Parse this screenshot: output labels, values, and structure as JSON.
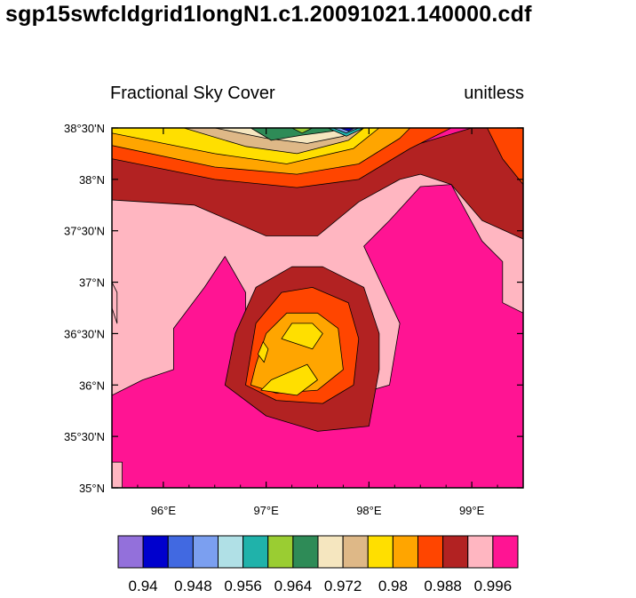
{
  "file_title": "sgp15swfcldgrid1longN1.c1.20091021.140000.cdf",
  "chart_data": {
    "type": "contour",
    "title": "Fractional Sky Cover",
    "units": "unitless",
    "xlim": [
      95.5,
      99.5
    ],
    "ylim": [
      35.0,
      38.5
    ],
    "x_ticks": [
      {
        "value": 96,
        "label": "96°E"
      },
      {
        "value": 97,
        "label": "97°E"
      },
      {
        "value": 98,
        "label": "98°E"
      },
      {
        "value": 99,
        "label": "99°E"
      }
    ],
    "y_ticks": [
      {
        "value": 35.0,
        "label": "35°N"
      },
      {
        "value": 35.5,
        "label": "35°30'N"
      },
      {
        "value": 36.0,
        "label": "36°N"
      },
      {
        "value": 36.5,
        "label": "36°30'N"
      },
      {
        "value": 37.0,
        "label": "37°N"
      },
      {
        "value": 37.5,
        "label": "37°30'N"
      },
      {
        "value": 38.0,
        "label": "38°N"
      },
      {
        "value": 38.5,
        "label": "38°30'N"
      }
    ],
    "colorbar_colors": [
      "#9370db",
      "#0000cd",
      "#4169e1",
      "#7b9ff0",
      "#b0e0e6",
      "#20b2aa",
      "#9acd32",
      "#2e8b57",
      "#f5e6bf",
      "#deb887",
      "#ffdf00",
      "#ffa500",
      "#ff4500",
      "#b22222",
      "#ffb6c1",
      "#ff1493"
    ],
    "colorbar_labels": [
      "0.94",
      "0.948",
      "0.956",
      "0.964",
      "0.972",
      "0.98",
      "0.988",
      "0.996"
    ],
    "colorbar_label_after_bins": [
      2,
      4,
      6,
      8,
      10,
      12,
      14,
      16
    ],
    "regions": [
      {
        "color_index": 13,
        "points": [
          [
            95.5,
            38.35
          ],
          [
            96.6,
            38.2
          ],
          [
            97.3,
            38.12
          ],
          [
            98.0,
            38.2
          ],
          [
            98.6,
            38.38
          ],
          [
            99.0,
            38.5
          ],
          [
            99.5,
            38.5
          ],
          [
            99.5,
            35.0
          ],
          [
            95.5,
            35.0
          ]
        ]
      },
      {
        "color_index": 14,
        "points": [
          [
            95.5,
            37.8
          ],
          [
            96.3,
            37.75
          ],
          [
            97.0,
            37.45
          ],
          [
            97.5,
            37.45
          ],
          [
            97.9,
            37.78
          ],
          [
            98.3,
            38.0
          ],
          [
            98.5,
            38.05
          ],
          [
            98.8,
            37.95
          ],
          [
            99.1,
            37.6
          ],
          [
            99.5,
            37.42
          ],
          [
            99.5,
            35.0
          ],
          [
            95.5,
            35.0
          ]
        ]
      },
      {
        "color_index": 15,
        "points": [
          [
            95.5,
            35.9
          ],
          [
            95.8,
            36.05
          ],
          [
            96.1,
            36.15
          ],
          [
            96.1,
            36.55
          ],
          [
            96.4,
            36.95
          ],
          [
            96.6,
            37.25
          ],
          [
            96.8,
            36.9
          ],
          [
            96.8,
            36.5
          ],
          [
            96.7,
            36.25
          ],
          [
            97.0,
            35.9
          ],
          [
            97.5,
            35.8
          ],
          [
            98.2,
            36.0
          ],
          [
            98.3,
            36.6
          ],
          [
            97.95,
            37.35
          ],
          [
            98.2,
            37.6
          ],
          [
            98.5,
            37.93
          ],
          [
            98.8,
            37.95
          ],
          [
            99.1,
            37.4
          ],
          [
            99.3,
            37.2
          ],
          [
            99.3,
            36.8
          ],
          [
            99.5,
            36.7
          ],
          [
            99.5,
            35.0
          ],
          [
            95.5,
            35.0
          ]
        ]
      },
      {
        "color_index": 13,
        "points": [
          [
            96.6,
            36.0
          ],
          [
            97.0,
            35.7
          ],
          [
            97.5,
            35.55
          ],
          [
            98.0,
            35.6
          ],
          [
            98.1,
            36.15
          ],
          [
            98.1,
            36.5
          ],
          [
            97.95,
            36.95
          ],
          [
            97.55,
            37.15
          ],
          [
            97.25,
            37.15
          ],
          [
            96.9,
            36.95
          ],
          [
            96.7,
            36.5
          ]
        ]
      },
      {
        "color_index": 12,
        "points": [
          [
            96.8,
            36.0
          ],
          [
            97.1,
            35.85
          ],
          [
            97.55,
            35.82
          ],
          [
            97.85,
            36.0
          ],
          [
            97.9,
            36.45
          ],
          [
            97.8,
            36.8
          ],
          [
            97.45,
            36.95
          ],
          [
            97.15,
            36.9
          ],
          [
            96.9,
            36.6
          ]
        ]
      },
      {
        "color_index": 11,
        "points": [
          [
            96.85,
            36.0
          ],
          [
            97.1,
            35.92
          ],
          [
            97.5,
            35.95
          ],
          [
            97.75,
            36.15
          ],
          [
            97.7,
            36.55
          ],
          [
            97.5,
            36.7
          ],
          [
            97.2,
            36.7
          ],
          [
            97.0,
            36.5
          ],
          [
            96.9,
            36.2
          ]
        ]
      },
      {
        "color_index": 10,
        "points": [
          [
            96.95,
            35.95
          ],
          [
            97.3,
            35.9
          ],
          [
            97.5,
            36.05
          ],
          [
            97.4,
            36.2
          ],
          [
            97.05,
            36.05
          ]
        ]
      },
      {
        "color_index": 10,
        "points": [
          [
            97.15,
            36.45
          ],
          [
            97.45,
            36.35
          ],
          [
            97.55,
            36.5
          ],
          [
            97.45,
            36.6
          ],
          [
            97.25,
            36.6
          ]
        ]
      },
      {
        "color_index": 10,
        "points": [
          [
            96.92,
            36.3
          ],
          [
            96.98,
            36.22
          ],
          [
            97.02,
            36.35
          ],
          [
            96.97,
            36.42
          ]
        ]
      },
      {
        "color_index": 12,
        "points": [
          [
            95.5,
            38.2
          ],
          [
            96.5,
            38.0
          ],
          [
            97.3,
            37.92
          ],
          [
            97.9,
            38.0
          ],
          [
            98.4,
            38.3
          ],
          [
            98.8,
            38.5
          ],
          [
            95.5,
            38.5
          ]
        ]
      },
      {
        "color_index": 11,
        "points": [
          [
            95.5,
            38.33
          ],
          [
            96.5,
            38.12
          ],
          [
            97.3,
            38.05
          ],
          [
            97.9,
            38.15
          ],
          [
            98.3,
            38.4
          ],
          [
            98.4,
            38.5
          ],
          [
            95.5,
            38.5
          ]
        ]
      },
      {
        "color_index": 10,
        "points": [
          [
            95.5,
            38.45
          ],
          [
            96.5,
            38.25
          ],
          [
            97.2,
            38.15
          ],
          [
            97.85,
            38.3
          ],
          [
            98.1,
            38.5
          ],
          [
            95.5,
            38.5
          ]
        ]
      },
      {
        "color_index": 9,
        "points": [
          [
            96.2,
            38.5
          ],
          [
            96.8,
            38.32
          ],
          [
            97.3,
            38.25
          ],
          [
            97.8,
            38.38
          ],
          [
            97.95,
            38.5
          ]
        ]
      },
      {
        "color_index": 8,
        "points": [
          [
            96.5,
            38.5
          ],
          [
            97.0,
            38.4
          ],
          [
            97.4,
            38.35
          ],
          [
            97.75,
            38.42
          ],
          [
            97.85,
            38.5
          ]
        ]
      },
      {
        "color_index": 7,
        "points": [
          [
            96.85,
            38.5
          ],
          [
            97.05,
            38.38
          ],
          [
            97.35,
            38.43
          ],
          [
            97.65,
            38.47
          ],
          [
            97.7,
            38.5
          ]
        ]
      },
      {
        "color_index": 6,
        "points": [
          [
            97.25,
            38.5
          ],
          [
            97.35,
            38.45
          ],
          [
            97.45,
            38.5
          ]
        ]
      },
      {
        "color_index": 5,
        "points": [
          [
            97.6,
            38.5
          ],
          [
            97.78,
            38.42
          ],
          [
            97.95,
            38.5
          ]
        ]
      },
      {
        "color_index": 3,
        "points": [
          [
            97.65,
            38.5
          ],
          [
            97.78,
            38.45
          ],
          [
            97.9,
            38.5
          ]
        ]
      },
      {
        "color_index": 1,
        "points": [
          [
            97.72,
            38.5
          ],
          [
            97.8,
            38.47
          ],
          [
            97.86,
            38.5
          ]
        ]
      },
      {
        "color_index": 12,
        "points": [
          [
            99.15,
            38.5
          ],
          [
            99.5,
            38.5
          ],
          [
            99.5,
            37.95
          ],
          [
            99.3,
            38.2
          ]
        ]
      },
      {
        "color_index": 14,
        "points": [
          [
            95.5,
            35.0
          ],
          [
            95.6,
            35.0
          ],
          [
            95.6,
            35.25
          ],
          [
            95.5,
            35.25
          ]
        ]
      },
      {
        "color_index": 14,
        "points": [
          [
            95.5,
            36.75
          ],
          [
            95.55,
            36.6
          ],
          [
            95.55,
            36.9
          ],
          [
            95.5,
            37.0
          ]
        ]
      }
    ]
  }
}
